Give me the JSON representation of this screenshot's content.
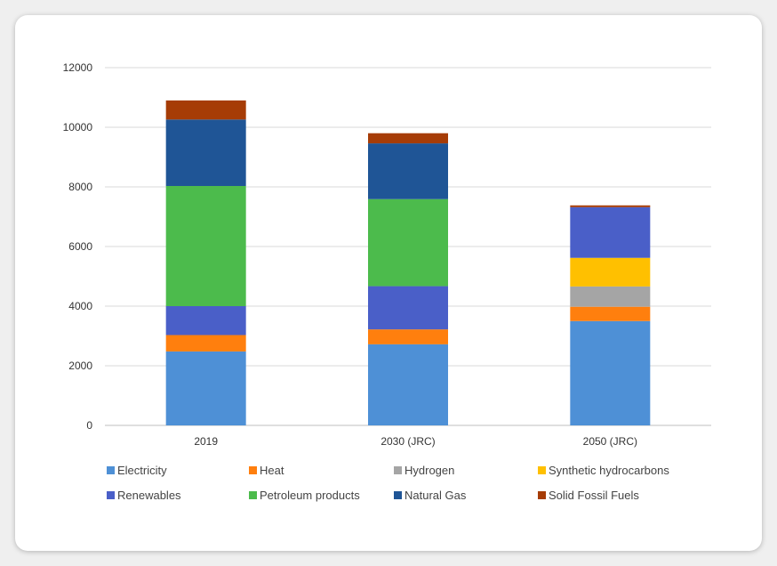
{
  "chart_data": {
    "type": "bar",
    "stacked": true,
    "categories": [
      "2019",
      "2030 (JRC)",
      "2050 (JRC)"
    ],
    "ylim": [
      0,
      12000
    ],
    "yticks": [
      0,
      2000,
      4000,
      6000,
      8000,
      10000,
      12000
    ],
    "grid": true,
    "legend_position": "bottom",
    "series": [
      {
        "name": "Electricity",
        "color": "#4e90d6",
        "values": [
          2480,
          2720,
          3500
        ]
      },
      {
        "name": "Heat",
        "color": "#ff7f0e",
        "values": [
          550,
          500,
          480
        ]
      },
      {
        "name": "Hydrogen",
        "color": "#a5a5a5",
        "values": [
          0,
          0,
          680
        ]
      },
      {
        "name": "Synthetic hydrocarbons",
        "color": "#ffc000",
        "values": [
          0,
          0,
          960
        ]
      },
      {
        "name": "Renewables",
        "color": "#4a5fc8",
        "values": [
          970,
          1450,
          1700
        ]
      },
      {
        "name": "Petroleum products",
        "color": "#4cbb4c",
        "values": [
          4030,
          2920,
          0
        ]
      },
      {
        "name": "Natural Gas",
        "color": "#1f5596",
        "values": [
          2230,
          1870,
          0
        ]
      },
      {
        "name": "Solid Fossil Fuels",
        "color": "#a63c06",
        "values": [
          640,
          340,
          60
        ]
      }
    ]
  }
}
